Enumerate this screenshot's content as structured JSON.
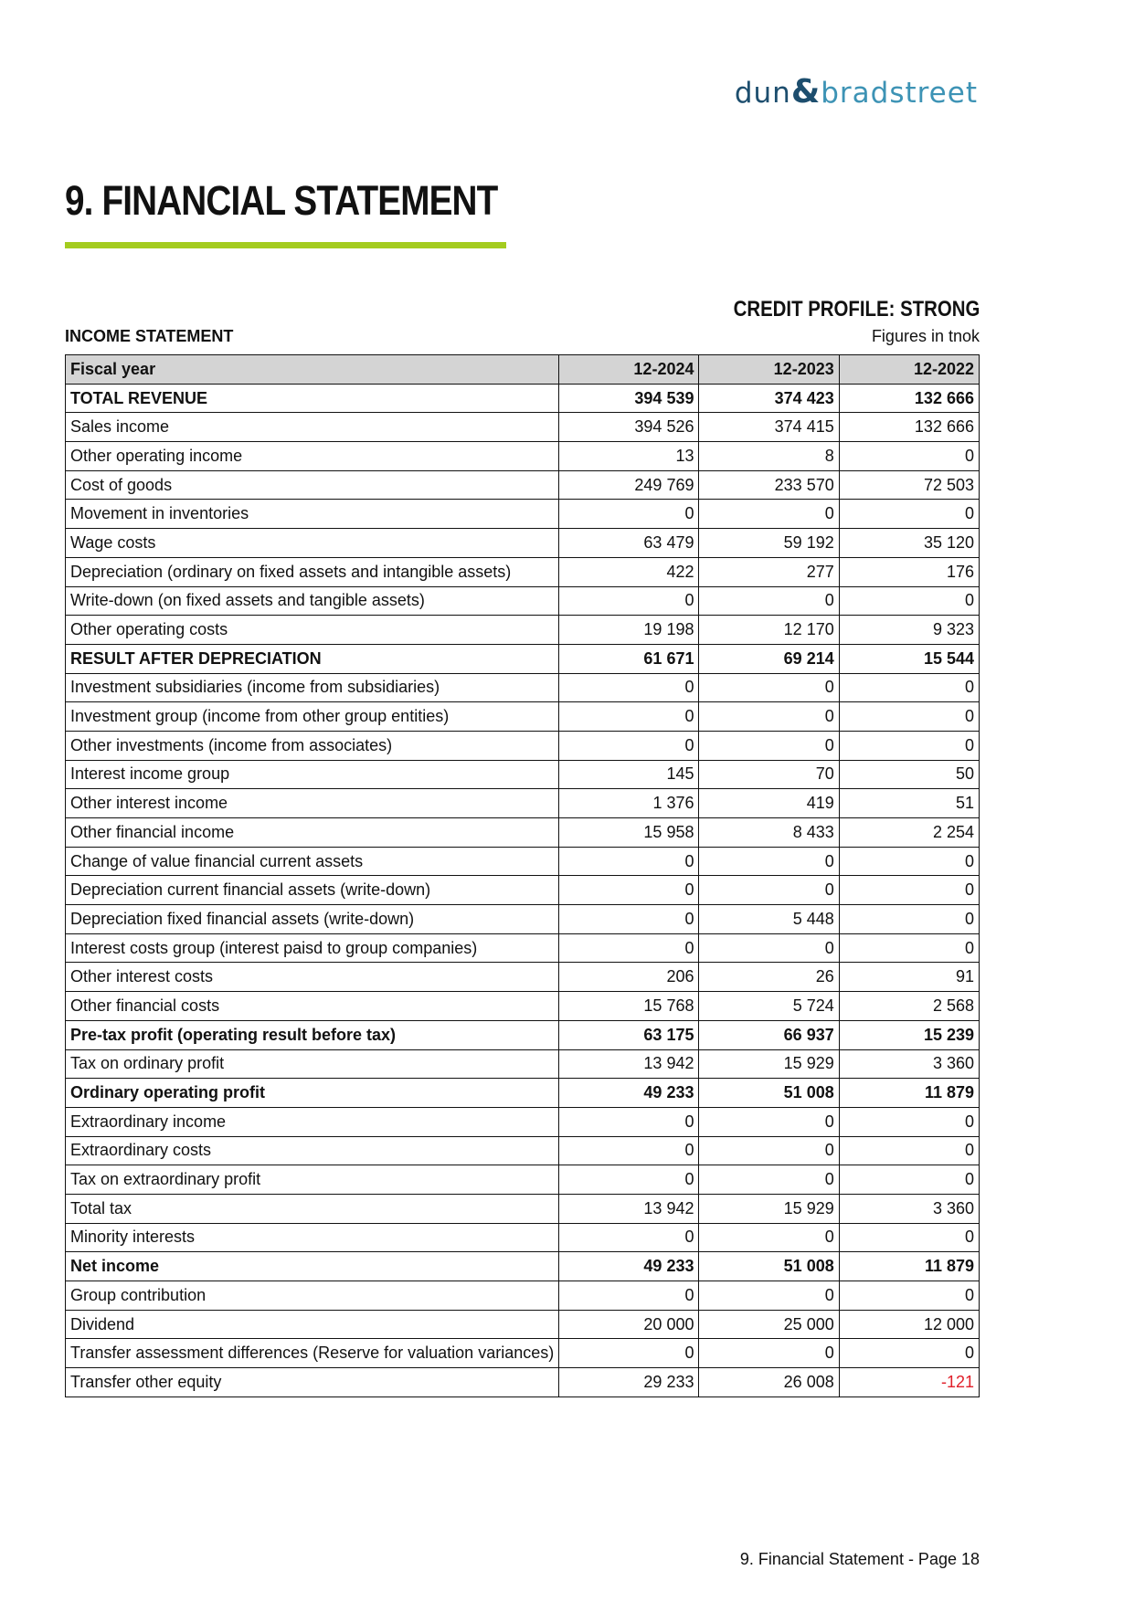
{
  "logo": {
    "text": "dun & bradstreet",
    "part1": "dun",
    "amp": "&",
    "part2": "bradstreet"
  },
  "page_title": "9. FINANCIAL STATEMENT",
  "accent_color": "#a4cc1f",
  "credit_profile": "CREDIT PROFILE: STRONG",
  "section_title": "INCOME STATEMENT",
  "units": "Figures in tnok",
  "table": {
    "headers": [
      "Fiscal year",
      "12-2024",
      "12-2023",
      "12-2022"
    ],
    "rows": [
      {
        "label": "TOTAL REVENUE",
        "values": [
          "394 539",
          "374 423",
          "132 666"
        ],
        "bold": true
      },
      {
        "label": "Sales income",
        "values": [
          "394 526",
          "374 415",
          "132 666"
        ]
      },
      {
        "label": "Other operating income",
        "values": [
          "13",
          "8",
          "0"
        ]
      },
      {
        "label": "Cost of goods",
        "values": [
          "249 769",
          "233 570",
          "72 503"
        ]
      },
      {
        "label": "Movement in inventories",
        "values": [
          "0",
          "0",
          "0"
        ]
      },
      {
        "label": "Wage costs",
        "values": [
          "63 479",
          "59 192",
          "35 120"
        ]
      },
      {
        "label": "Depreciation (ordinary on fixed assets and intangible assets)",
        "values": [
          "422",
          "277",
          "176"
        ]
      },
      {
        "label": "Write-down (on fixed assets and tangible assets)",
        "values": [
          "0",
          "0",
          "0"
        ]
      },
      {
        "label": "Other operating costs",
        "values": [
          "19 198",
          "12 170",
          "9 323"
        ]
      },
      {
        "label": "RESULT AFTER DEPRECIATION",
        "values": [
          "61 671",
          "69 214",
          "15 544"
        ],
        "bold": true
      },
      {
        "label": "Investment subsidiaries (income from subsidiaries)",
        "values": [
          "0",
          "0",
          "0"
        ]
      },
      {
        "label": "Investment group (income from other group entities)",
        "values": [
          "0",
          "0",
          "0"
        ]
      },
      {
        "label": "Other investments (income from associates)",
        "values": [
          "0",
          "0",
          "0"
        ]
      },
      {
        "label": "Interest income group",
        "values": [
          "145",
          "70",
          "50"
        ]
      },
      {
        "label": "Other interest income",
        "values": [
          "1 376",
          "419",
          "51"
        ]
      },
      {
        "label": "Other financial income",
        "values": [
          "15 958",
          "8 433",
          "2 254"
        ]
      },
      {
        "label": "Change of value financial current assets",
        "values": [
          "0",
          "0",
          "0"
        ]
      },
      {
        "label": "Depreciation current financial assets (write-down)",
        "values": [
          "0",
          "0",
          "0"
        ]
      },
      {
        "label": "Depreciation fixed financial assets (write-down)",
        "values": [
          "0",
          "5 448",
          "0"
        ]
      },
      {
        "label": "Interest costs group (interest paisd to group companies)",
        "values": [
          "0",
          "0",
          "0"
        ]
      },
      {
        "label": "Other interest costs",
        "values": [
          "206",
          "26",
          "91"
        ]
      },
      {
        "label": "Other financial costs",
        "values": [
          "15 768",
          "5 724",
          "2 568"
        ]
      },
      {
        "label": "Pre-tax profit (operating result before tax)",
        "values": [
          "63 175",
          "66 937",
          "15 239"
        ],
        "bold": true
      },
      {
        "label": "Tax on ordinary profit",
        "values": [
          "13 942",
          "15 929",
          "3 360"
        ]
      },
      {
        "label": "Ordinary operating profit",
        "values": [
          "49 233",
          "51 008",
          "11 879"
        ],
        "bold": true
      },
      {
        "label": "Extraordinary income",
        "values": [
          "0",
          "0",
          "0"
        ]
      },
      {
        "label": "Extraordinary costs",
        "values": [
          "0",
          "0",
          "0"
        ]
      },
      {
        "label": "Tax on extraordinary profit",
        "values": [
          "0",
          "0",
          "0"
        ]
      },
      {
        "label": "Total tax",
        "values": [
          "13 942",
          "15 929",
          "3 360"
        ]
      },
      {
        "label": "Minority interests",
        "values": [
          "0",
          "0",
          "0"
        ]
      },
      {
        "label": "Net income",
        "values": [
          "49 233",
          "51 008",
          "11 879"
        ],
        "bold": true
      },
      {
        "label": "Group contribution",
        "values": [
          "0",
          "0",
          "0"
        ]
      },
      {
        "label": "Dividend",
        "values": [
          "20 000",
          "25 000",
          "12 000"
        ]
      },
      {
        "label": "Transfer assessment differences (Reserve for valuation variances)",
        "values": [
          "0",
          "0",
          "0"
        ]
      },
      {
        "label": "Transfer other equity",
        "values": [
          "29 233",
          "26 008",
          "-121"
        ]
      }
    ]
  },
  "negative_color": "#e0202a",
  "footer": "9. Financial Statement - Page 18"
}
